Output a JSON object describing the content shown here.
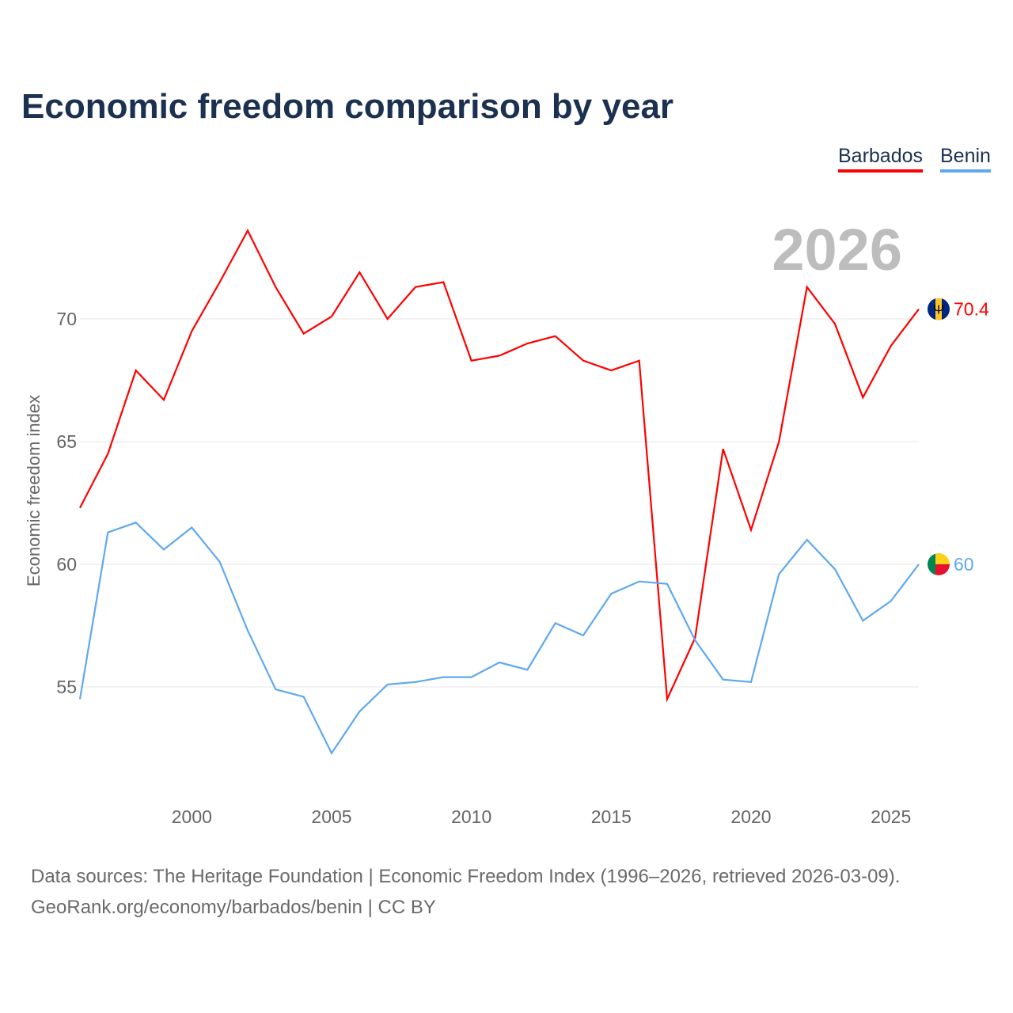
{
  "title": "Economic freedom comparison by year",
  "legend": [
    "Barbados",
    "Benin"
  ],
  "year_label": "2026",
  "footer": {
    "line1": "Data sources: The Heritage Foundation | Economic Freedom Index (1996–2026, retrieved 2026-03-09).",
    "line2": "GeoRank.org/economy/barbados/benin | CC BY"
  },
  "chart_data": {
    "type": "line",
    "title": "Economic freedom comparison by year",
    "xlabel": "",
    "ylabel": "Economic freedom index",
    "xlim": [
      1996,
      2026
    ],
    "ylim": [
      51.5,
      75
    ],
    "xticks": [
      2000,
      2005,
      2010,
      2015,
      2020,
      2025
    ],
    "yticks": [
      55,
      60,
      65,
      70
    ],
    "grid": true,
    "legend_position": "top-right",
    "x": [
      1996,
      1997,
      1998,
      1999,
      2000,
      2001,
      2002,
      2003,
      2004,
      2005,
      2006,
      2007,
      2008,
      2009,
      2010,
      2011,
      2012,
      2013,
      2014,
      2015,
      2016,
      2017,
      2018,
      2019,
      2020,
      2021,
      2022,
      2023,
      2024,
      2025,
      2026
    ],
    "series": [
      {
        "name": "Barbados",
        "color": "#ff0000",
        "end_label": "70.4",
        "flag": "barbados-flag",
        "values": [
          62.3,
          64.5,
          67.9,
          66.7,
          69.5,
          71.5,
          73.6,
          71.3,
          69.4,
          70.1,
          71.9,
          70.0,
          71.3,
          71.5,
          68.3,
          68.5,
          69.0,
          69.3,
          68.3,
          67.9,
          68.3,
          54.5,
          57.0,
          64.7,
          61.4,
          65.0,
          71.3,
          69.8,
          66.8,
          68.9,
          70.4
        ]
      },
      {
        "name": "Benin",
        "color": "#5fa8ef",
        "end_label": "60",
        "flag": "benin-flag",
        "values": [
          54.5,
          61.3,
          61.7,
          60.6,
          61.5,
          60.1,
          57.3,
          54.9,
          54.6,
          52.3,
          54.0,
          55.1,
          55.2,
          55.4,
          55.4,
          56.0,
          55.7,
          57.6,
          57.1,
          58.8,
          59.3,
          59.2,
          56.9,
          55.3,
          55.2,
          59.6,
          61.0,
          59.8,
          57.7,
          58.5,
          60.0
        ]
      }
    ]
  }
}
